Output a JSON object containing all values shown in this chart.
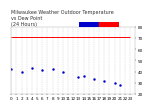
{
  "title": "Milwaukee Weather Outdoor Temperature\nvs Dew Point\n(24 Hours)",
  "title_fontsize": 3.5,
  "bg_color": "#ffffff",
  "plot_bg_color": "#ffffff",
  "temp_color": "#ff0000",
  "dew_color": "#0000cc",
  "legend_temp_color": "#ff0000",
  "legend_dew_color": "#0000cc",
  "legend_bg_color": "#0000ff",
  "temp_line_y": 71,
  "xlim": [
    0,
    24
  ],
  "ylim": [
    20,
    80
  ],
  "yticks": [
    20,
    30,
    40,
    50,
    60,
    70,
    80
  ],
  "xticks": [
    0,
    1,
    2,
    3,
    4,
    5,
    6,
    7,
    8,
    9,
    10,
    11,
    12,
    13,
    14,
    15,
    16,
    17,
    18,
    19,
    20,
    21,
    22,
    23
  ],
  "temp_data_x": [
    0,
    1,
    2,
    3,
    4,
    5,
    6,
    7,
    8,
    9,
    10,
    11,
    12,
    13,
    14,
    15,
    16,
    17,
    18,
    19,
    20,
    21,
    22,
    23
  ],
  "temp_data_y": [
    71,
    71,
    71,
    71,
    71,
    71,
    71,
    71,
    71,
    71,
    71,
    71,
    71,
    71,
    71,
    71,
    71,
    71,
    71,
    71,
    71,
    71,
    71,
    71
  ],
  "dew_data_x": [
    0,
    2,
    4,
    6,
    8,
    10,
    13,
    14,
    16,
    18,
    20,
    21
  ],
  "dew_data_y": [
    42,
    40,
    43,
    41,
    42,
    40,
    35,
    36,
    33,
    32,
    30,
    28
  ],
  "grid_color": "#cccccc",
  "tick_fontsize": 3.0,
  "marker_size": 1.5
}
